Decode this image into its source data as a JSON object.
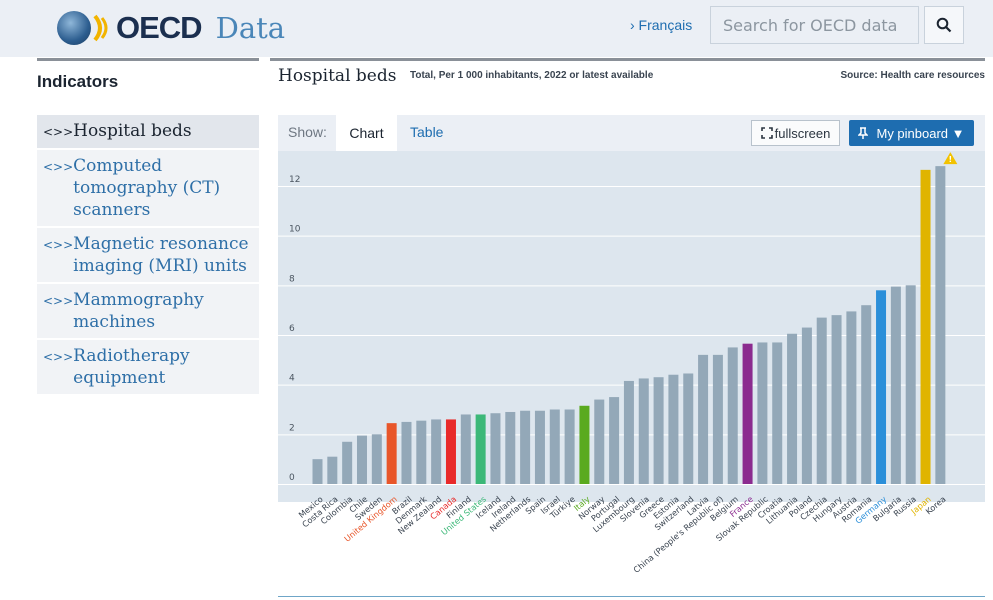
{
  "header": {
    "logo_text": "OECD",
    "logo_sub": "Data",
    "lang_link": "› Français",
    "search_placeholder": "Search for OECD data"
  },
  "sidebar": {
    "title": "Indicators",
    "items": [
      {
        "label": "Hospital beds",
        "active": true
      },
      {
        "label": "Computed tomography (CT) scanners",
        "active": false
      },
      {
        "label": "Magnetic resonance imaging (MRI) units",
        "active": false
      },
      {
        "label": "Mammography machines",
        "active": false
      },
      {
        "label": "Radiotherapy equipment",
        "active": false
      }
    ]
  },
  "main": {
    "title": "Hospital beds",
    "subtitle": "Total, Per 1 000 inhabitants, 2022 or latest available",
    "source": "Source: Health care resources",
    "show_label": "Show:",
    "tabs": [
      "Chart",
      "Table"
    ],
    "active_tab": "Chart",
    "fullscreen_label": "fullscreen",
    "pinboard_label": "My pinboard ▼"
  },
  "colors": {
    "default_bar": "#93a8b8",
    "grid": "#ffffff",
    "plot_bg": "#dde6ee",
    "accent_blue": "#1e6db0"
  },
  "chart_data": {
    "type": "bar",
    "title": "Hospital beds",
    "ylim": [
      0,
      13
    ],
    "yticks": [
      0,
      2,
      4,
      6,
      8,
      10,
      12
    ],
    "grid": true,
    "categories": [
      "Mexico",
      "Costa Rica",
      "Colombia",
      "Chile",
      "Sweden",
      "United Kingdom",
      "Brazil",
      "Denmark",
      "New Zealand",
      "Canada",
      "Finland",
      "United States",
      "Iceland",
      "Ireland",
      "Netherlands",
      "Spain",
      "Israel",
      "Türkiye",
      "Italy",
      "Norway",
      "Portugal",
      "Luxembourg",
      "Slovenia",
      "Greece",
      "Estonia",
      "Switzerland",
      "Latvia",
      "China (People's Republic of)",
      "Belgium",
      "France",
      "Slovak Republic",
      "Croatia",
      "Lithuania",
      "Poland",
      "Czechia",
      "Hungary",
      "Austria",
      "Romania",
      "Germany",
      "Bulgaria",
      "Russia",
      "Japan",
      "Korea"
    ],
    "values": [
      1.0,
      1.1,
      1.7,
      1.95,
      2.0,
      2.45,
      2.5,
      2.55,
      2.6,
      2.6,
      2.8,
      2.8,
      2.85,
      2.9,
      2.95,
      2.95,
      3.0,
      3.0,
      3.15,
      3.4,
      3.5,
      4.15,
      4.25,
      4.3,
      4.4,
      4.45,
      5.2,
      5.2,
      5.5,
      5.65,
      5.7,
      5.7,
      6.05,
      6.3,
      6.7,
      6.8,
      6.95,
      7.2,
      7.8,
      7.95,
      8.0,
      12.65,
      12.8
    ],
    "highlight_colors": {
      "United Kingdom": "#e8562a",
      "Canada": "#e82a2a",
      "United States": "#3cb878",
      "Italy": "#5aaa1f",
      "France": "#8b2b8f",
      "Germany": "#2b8fd9",
      "Japan": "#e0b400"
    },
    "warning_on": "Korea"
  }
}
